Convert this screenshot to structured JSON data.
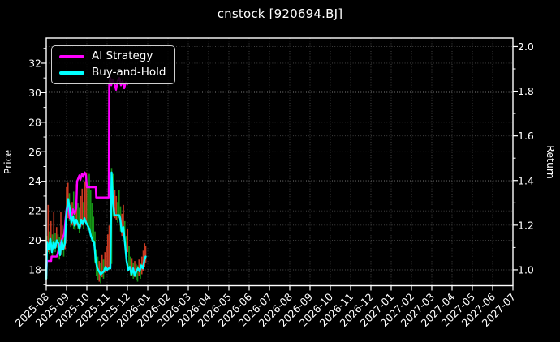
{
  "chart_data": {
    "type": "line",
    "title": "cnstock [920694.BJ]",
    "grid": true,
    "background": "#000000",
    "text_color": "#ffffff",
    "grid_color": "#4a4a4a",
    "spine_color": "#ffffff",
    "x_axis": {
      "lim": [
        0,
        23
      ],
      "tick_labels": [
        "2025-08",
        "2025-09",
        "2025-10",
        "2025-11",
        "2025-12",
        "2026-01",
        "2026-02",
        "2026-03",
        "2026-04",
        "2026-05",
        "2026-06",
        "2026-07",
        "2026-08",
        "2026-09",
        "2026-10",
        "2026-11",
        "2026-12",
        "2027-01",
        "2027-02",
        "2027-03",
        "2027-04",
        "2027-05",
        "2027-06",
        "2027-07"
      ]
    },
    "left_axis": {
      "label": "Price",
      "lim": [
        16.93,
        33.7
      ],
      "ticks": [
        18,
        20,
        22,
        24,
        26,
        28,
        30,
        32
      ],
      "tick_labels": [
        "18",
        "20",
        "22",
        "24",
        "26",
        "28",
        "30",
        "32"
      ],
      "minor_ticks": [
        17,
        19,
        21,
        23,
        25,
        27,
        29,
        31,
        33
      ]
    },
    "right_axis": {
      "label": "Return",
      "lim": [
        0.929,
        2.038
      ],
      "ticks": [
        1.0,
        1.2,
        1.4,
        1.6,
        1.8,
        2.0
      ],
      "tick_labels": [
        "1.0",
        "1.2",
        "1.4",
        "1.6",
        "1.8",
        "2.0"
      ],
      "minor_ticks": [
        1.1,
        1.3,
        1.5,
        1.7,
        1.9
      ]
    },
    "legend": {
      "position": "upper-left",
      "entries": [
        {
          "label": "AI Strategy",
          "color": "#ff00ff"
        },
        {
          "label": "Buy-and-Hold",
          "color": "#00ffff"
        }
      ]
    },
    "colors": {
      "bar_up": "#c93a22",
      "bar_down": "#169416"
    },
    "series": [
      {
        "name": "AI Strategy",
        "color": "#ff00ff",
        "width": 2.4,
        "axis": "left",
        "points": [
          [
            0,
            17.6
          ],
          [
            0.03,
            18.6
          ],
          [
            0.24,
            18.6
          ],
          [
            0.26,
            18.9
          ],
          [
            0.52,
            18.9
          ],
          [
            0.64,
            19.5
          ],
          [
            0.76,
            20.0
          ],
          [
            0.88,
            20.4
          ],
          [
            1.0,
            22.1
          ],
          [
            1.08,
            22.5
          ],
          [
            1.16,
            21.5
          ],
          [
            1.24,
            21.6
          ],
          [
            1.32,
            22.1
          ],
          [
            1.4,
            21.8
          ],
          [
            1.48,
            22.2
          ],
          [
            1.52,
            24.0
          ],
          [
            1.63,
            24.4
          ],
          [
            1.68,
            24.1
          ],
          [
            1.76,
            24.5
          ],
          [
            1.81,
            24.3
          ],
          [
            1.89,
            24.6
          ],
          [
            1.96,
            24.4
          ],
          [
            2.0,
            23.6
          ],
          [
            2.44,
            23.6
          ],
          [
            2.46,
            22.9
          ],
          [
            3.08,
            22.9
          ],
          [
            3.1,
            30.6
          ],
          [
            3.16,
            31.0
          ],
          [
            3.2,
            30.5
          ],
          [
            3.28,
            30.9
          ],
          [
            3.36,
            30.6
          ],
          [
            3.44,
            30.2
          ],
          [
            3.52,
            30.8
          ],
          [
            3.6,
            31.0
          ],
          [
            3.68,
            30.5
          ],
          [
            3.76,
            30.8
          ],
          [
            3.84,
            30.3
          ],
          [
            3.92,
            30.7
          ],
          [
            4.0,
            30.6
          ]
        ]
      },
      {
        "name": "Buy-and-Hold",
        "color": "#00ffff",
        "width": 2.4,
        "axis": "left",
        "points": [
          [
            0,
            17.4
          ],
          [
            0.04,
            19.9
          ],
          [
            0.12,
            19.4
          ],
          [
            0.2,
            20.1
          ],
          [
            0.28,
            19.2
          ],
          [
            0.36,
            19.9
          ],
          [
            0.44,
            19.5
          ],
          [
            0.52,
            20.0
          ],
          [
            0.6,
            19.8
          ],
          [
            0.68,
            19.0
          ],
          [
            0.76,
            20.0
          ],
          [
            0.84,
            19.4
          ],
          [
            0.92,
            19.8
          ],
          [
            1.0,
            21.9
          ],
          [
            1.08,
            22.8
          ],
          [
            1.16,
            22.1
          ],
          [
            1.24,
            21.2
          ],
          [
            1.32,
            21.6
          ],
          [
            1.4,
            21.0
          ],
          [
            1.48,
            21.4
          ],
          [
            1.56,
            21.1
          ],
          [
            1.64,
            20.8
          ],
          [
            1.72,
            21.4
          ],
          [
            1.8,
            21.1
          ],
          [
            1.88,
            21.5
          ],
          [
            1.96,
            21.2
          ],
          [
            2.04,
            21.0
          ],
          [
            2.12,
            20.8
          ],
          [
            2.2,
            20.3
          ],
          [
            2.28,
            20.0
          ],
          [
            2.36,
            19.9
          ],
          [
            2.44,
            18.6
          ],
          [
            2.52,
            18.1
          ],
          [
            2.6,
            17.9
          ],
          [
            2.68,
            17.7
          ],
          [
            2.76,
            17.8
          ],
          [
            2.84,
            17.9
          ],
          [
            2.92,
            18.2
          ],
          [
            3.0,
            18.0
          ],
          [
            3.08,
            18.1
          ],
          [
            3.16,
            18.1
          ],
          [
            3.22,
            24.6
          ],
          [
            3.28,
            22.7
          ],
          [
            3.36,
            21.7
          ],
          [
            3.6,
            21.7
          ],
          [
            3.64,
            21.5
          ],
          [
            3.72,
            20.6
          ],
          [
            3.8,
            20.9
          ],
          [
            3.88,
            19.8
          ],
          [
            3.96,
            18.6
          ],
          [
            4.04,
            18.0
          ],
          [
            4.12,
            18.2
          ],
          [
            4.2,
            17.7
          ],
          [
            4.28,
            18.1
          ],
          [
            4.36,
            17.6
          ],
          [
            4.44,
            17.9
          ],
          [
            4.52,
            18.1
          ],
          [
            4.6,
            17.9
          ],
          [
            4.68,
            18.3
          ],
          [
            4.76,
            18.1
          ],
          [
            4.84,
            18.7
          ],
          [
            4.9,
            18.9
          ]
        ]
      }
    ],
    "bars": [
      [
        0.02,
        20.3,
        17.4,
        "g"
      ],
      [
        0.09,
        22.4,
        19.2,
        "r"
      ],
      [
        0.16,
        20.6,
        19.1,
        "g"
      ],
      [
        0.23,
        21.3,
        19.3,
        "r"
      ],
      [
        0.3,
        20.4,
        18.9,
        "g"
      ],
      [
        0.37,
        21.9,
        19.4,
        "r"
      ],
      [
        0.44,
        20.5,
        19.2,
        "g"
      ],
      [
        0.51,
        20.9,
        19.5,
        "r"
      ],
      [
        0.58,
        20.4,
        19.0,
        "g"
      ],
      [
        0.65,
        20.2,
        18.7,
        "g"
      ],
      [
        0.72,
        21.9,
        19.0,
        "r"
      ],
      [
        0.79,
        21.0,
        19.3,
        "r"
      ],
      [
        0.86,
        20.3,
        18.9,
        "g"
      ],
      [
        0.93,
        21.0,
        19.4,
        "r"
      ],
      [
        1.0,
        23.6,
        19.8,
        "r"
      ],
      [
        1.07,
        23.9,
        21.5,
        "r"
      ],
      [
        1.14,
        23.2,
        21.3,
        "g"
      ],
      [
        1.21,
        22.4,
        20.9,
        "g"
      ],
      [
        1.28,
        22.6,
        21.0,
        "r"
      ],
      [
        1.35,
        23.3,
        20.8,
        "g"
      ],
      [
        1.42,
        22.3,
        20.7,
        "g"
      ],
      [
        1.49,
        23.8,
        21.0,
        "r"
      ],
      [
        1.56,
        22.5,
        20.8,
        "g"
      ],
      [
        1.63,
        22.2,
        20.5,
        "g"
      ],
      [
        1.7,
        23.0,
        20.9,
        "r"
      ],
      [
        1.77,
        23.5,
        21.0,
        "r"
      ],
      [
        1.84,
        22.6,
        20.8,
        "g"
      ],
      [
        1.91,
        24.0,
        21.2,
        "r"
      ],
      [
        1.98,
        24.6,
        21.1,
        "r"
      ],
      [
        2.05,
        23.6,
        20.7,
        "g"
      ],
      [
        2.12,
        24.5,
        20.9,
        "g"
      ],
      [
        2.19,
        23.4,
        20.4,
        "g"
      ],
      [
        2.26,
        22.5,
        19.9,
        "g"
      ],
      [
        2.33,
        21.6,
        19.6,
        "g"
      ],
      [
        2.4,
        20.6,
        18.5,
        "g"
      ],
      [
        2.47,
        19.4,
        17.6,
        "g"
      ],
      [
        2.54,
        18.9,
        17.3,
        "g"
      ],
      [
        2.61,
        18.6,
        17.2,
        "r"
      ],
      [
        2.68,
        18.5,
        17.1,
        "g"
      ],
      [
        2.75,
        19.0,
        17.5,
        "r"
      ],
      [
        2.82,
        18.7,
        17.4,
        "g"
      ],
      [
        2.89,
        19.2,
        17.8,
        "r"
      ],
      [
        2.96,
        19.6,
        17.9,
        "r"
      ],
      [
        3.03,
        20.4,
        18.0,
        "r"
      ],
      [
        3.1,
        21.0,
        18.2,
        "r"
      ],
      [
        3.22,
        24.9,
        18.4,
        "g"
      ],
      [
        3.3,
        24.5,
        21.6,
        "g"
      ],
      [
        3.38,
        23.4,
        21.5,
        "r"
      ],
      [
        3.45,
        23.0,
        21.4,
        "r"
      ],
      [
        3.52,
        22.6,
        21.2,
        "g"
      ],
      [
        3.59,
        23.4,
        21.5,
        "g"
      ],
      [
        3.66,
        22.3,
        20.6,
        "g"
      ],
      [
        3.73,
        21.8,
        20.3,
        "r"
      ],
      [
        3.8,
        22.4,
        20.7,
        "r"
      ],
      [
        3.87,
        21.3,
        20.0,
        "g"
      ],
      [
        3.94,
        20.3,
        18.9,
        "g"
      ],
      [
        4.01,
        20.8,
        19.2,
        "r"
      ],
      [
        4.08,
        19.6,
        18.1,
        "g"
      ],
      [
        4.15,
        18.9,
        17.6,
        "g"
      ],
      [
        4.22,
        18.8,
        17.6,
        "r"
      ],
      [
        4.29,
        18.5,
        17.4,
        "g"
      ],
      [
        4.36,
        18.6,
        17.5,
        "r"
      ],
      [
        4.43,
        18.4,
        17.3,
        "g"
      ],
      [
        4.5,
        18.3,
        17.2,
        "g"
      ],
      [
        4.57,
        18.7,
        17.6,
        "r"
      ],
      [
        4.64,
        18.5,
        17.4,
        "g"
      ],
      [
        4.71,
        18.9,
        17.7,
        "r"
      ],
      [
        4.78,
        19.3,
        17.9,
        "r"
      ],
      [
        4.85,
        19.8,
        18.2,
        "r"
      ],
      [
        4.9,
        19.6,
        18.5,
        "r"
      ]
    ]
  }
}
